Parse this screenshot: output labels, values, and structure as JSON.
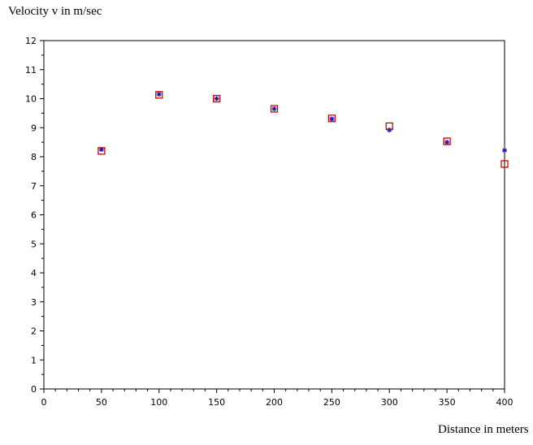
{
  "chart_data": {
    "type": "scatter",
    "title": "",
    "xlabel": "Distance in meters",
    "ylabel": "Velocity v in m/sec",
    "xlim": [
      0,
      400
    ],
    "ylim": [
      0,
      12
    ],
    "x_ticks": [
      0,
      50,
      100,
      150,
      200,
      250,
      300,
      350,
      400
    ],
    "y_ticks": [
      0,
      1,
      2,
      3,
      4,
      5,
      6,
      7,
      8,
      9,
      10,
      11,
      12
    ],
    "grid": false,
    "series": [
      {
        "marker": "star",
        "color": "#1a1aa6",
        "x": [
          50,
          100,
          150,
          200,
          250,
          300,
          350,
          400
        ],
        "y": [
          8.25,
          10.15,
          10.0,
          9.65,
          9.3,
          8.92,
          8.5,
          8.22
        ]
      },
      {
        "marker": "square-open",
        "color": "#d40000",
        "x": [
          50,
          100,
          150,
          200,
          250,
          300,
          350,
          400
        ],
        "y": [
          8.2,
          10.13,
          10.0,
          9.65,
          9.32,
          9.05,
          8.53,
          7.75
        ]
      }
    ]
  }
}
